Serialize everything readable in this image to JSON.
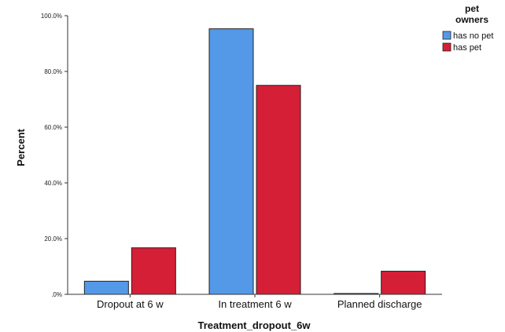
{
  "chart_data": {
    "type": "bar",
    "categories": [
      "Dropout at 6 w",
      "In treatment 6 w",
      "Planned discharge"
    ],
    "series": [
      {
        "name": "has no pet",
        "color": "#5499e8",
        "values": [
          4.7,
          95.3,
          0.3
        ]
      },
      {
        "name": "has pet",
        "color": "#d41f36",
        "values": [
          16.7,
          75.0,
          8.3
        ]
      }
    ],
    "xlabel": "Treatment_dropout_6w",
    "ylabel": "Percent",
    "ylim": [
      0,
      100
    ],
    "yticks": [
      0,
      20,
      40,
      60,
      80,
      100
    ],
    "ytick_labels": [
      ".0%",
      "20.0%",
      "40.0%",
      "60.0%",
      "80.0%",
      "100.0%"
    ],
    "legend": {
      "title_lines": [
        "pet",
        "owners"
      ],
      "position": "top-right"
    },
    "grid": false
  }
}
